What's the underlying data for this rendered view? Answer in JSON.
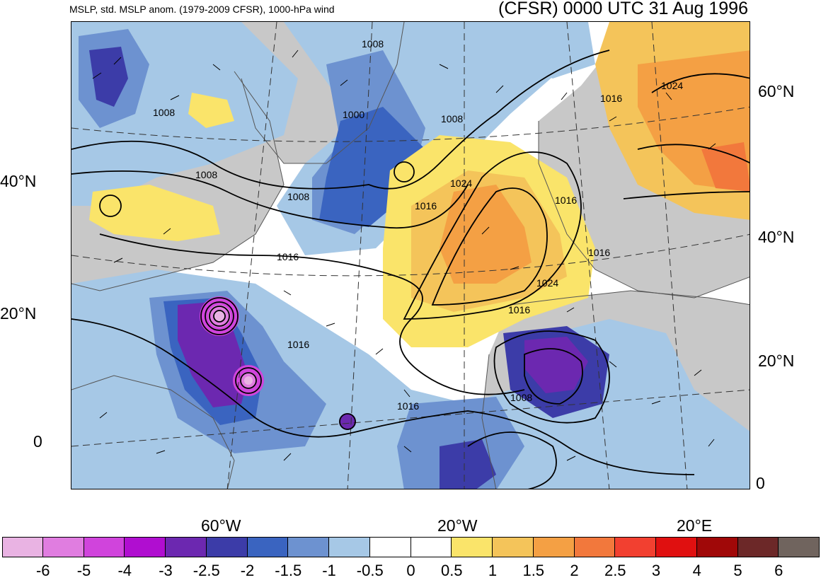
{
  "title_left": "MSLP, std. MSLP anom. (1979-2009 CFSR), 1000-hPa wind",
  "title_right": "(CFSR) 0000 UTC 31 Aug 1996",
  "axis_labels": {
    "left_lat": [
      "40°N",
      "20°N",
      "0"
    ],
    "right_lat": [
      "60°N",
      "40°N",
      "20°N",
      "0"
    ],
    "bottom_lon": [
      "60°W",
      "20°W",
      "20°E"
    ]
  },
  "contour_labels": [
    "1008",
    "1008",
    "1008",
    "1008",
    "1000",
    "1008",
    "1016",
    "1024",
    "1016",
    "1024",
    "1016",
    "1016",
    "1024",
    "1016",
    "1016",
    "1016",
    "1008",
    "1016"
  ],
  "colorbar": {
    "colors": [
      "#e9b3e3",
      "#e07de0",
      "#d044dc",
      "#b00ed0",
      "#6c28b0",
      "#3c3ca8",
      "#3a64c0",
      "#6d92d0",
      "#a6c8e6",
      "#ffffff",
      "#ffffff",
      "#fae46a",
      "#f4c45a",
      "#f4a044",
      "#f2783c",
      "#f24030",
      "#e01010",
      "#a00808",
      "#6c2828",
      "#70645e"
    ],
    "labels": [
      "-6",
      "-5",
      "-4",
      "-3",
      "-2.5",
      "-2",
      "-1.5",
      "-1",
      "-0.5",
      "0",
      "0.5",
      "1",
      "1.5",
      "2",
      "2.5",
      "3",
      "4",
      "5",
      "6"
    ]
  }
}
